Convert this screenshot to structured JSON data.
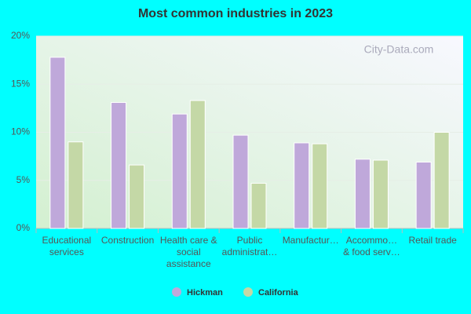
{
  "chart_data": {
    "type": "bar",
    "title": "Most common industries in 2023",
    "watermark": "City-Data.com",
    "categories": [
      "Educational services",
      "Construction",
      "Health care & social assistance",
      "Public administrat…",
      "Manufactur…",
      "Accommo… & food serv…",
      "Retail trade"
    ],
    "series": [
      {
        "name": "Hickman",
        "color": "#bfa8da",
        "values": [
          17.8,
          13.1,
          11.9,
          9.7,
          8.9,
          7.2,
          6.9
        ]
      },
      {
        "name": "California",
        "color": "#c4d8a6",
        "values": [
          9.0,
          6.6,
          13.3,
          4.7,
          8.8,
          7.1,
          10.0
        ]
      }
    ],
    "ylim": [
      0,
      20
    ],
    "yticks": [
      {
        "value": 0,
        "label": "0%"
      },
      {
        "value": 5,
        "label": "5%"
      },
      {
        "value": 10,
        "label": "10%"
      },
      {
        "value": 15,
        "label": "15%"
      },
      {
        "value": 20,
        "label": "20%"
      }
    ],
    "grid": true
  }
}
